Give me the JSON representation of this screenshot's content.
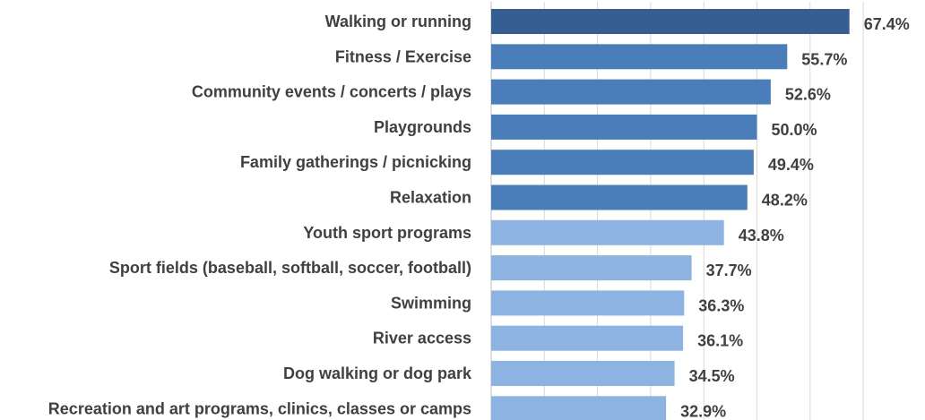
{
  "chart_data": {
    "type": "bar",
    "orientation": "horizontal",
    "title": "",
    "xlabel": "",
    "ylabel": "",
    "xlim": [
      0,
      70
    ],
    "grid": true,
    "legend": "none",
    "value_suffix": "%",
    "categories": [
      "Walking or running",
      "Fitness / Exercise",
      "Community events / concerts / plays",
      "Playgrounds",
      "Family gatherings / picnicking",
      "Relaxation",
      "Youth sport programs",
      "Sport fields (baseball, softball, soccer, football)",
      "Swimming",
      "River access",
      "Dog walking or dog park",
      "Recreation and art programs, clinics, classes or camps"
    ],
    "values": [
      67.4,
      55.7,
      52.6,
      50.0,
      49.4,
      48.2,
      43.8,
      37.7,
      36.3,
      36.1,
      34.5,
      32.9
    ],
    "value_labels": [
      "67.4%",
      "55.7%",
      "52.6%",
      "50.0%",
      "49.4%",
      "48.2%",
      "43.8%",
      "37.7%",
      "36.3%",
      "36.1%",
      "34.5%",
      "32.9%"
    ],
    "bar_colors": [
      "#355f93",
      "#4a7ebb",
      "#4a7ebb",
      "#4a7ebb",
      "#4a7ebb",
      "#4a7ebb",
      "#8db3e2",
      "#8db3e2",
      "#8db3e2",
      "#8db3e2",
      "#8db3e2",
      "#8db3e2"
    ],
    "label_color": "#404040",
    "grid_color": "#d9d9d9"
  }
}
